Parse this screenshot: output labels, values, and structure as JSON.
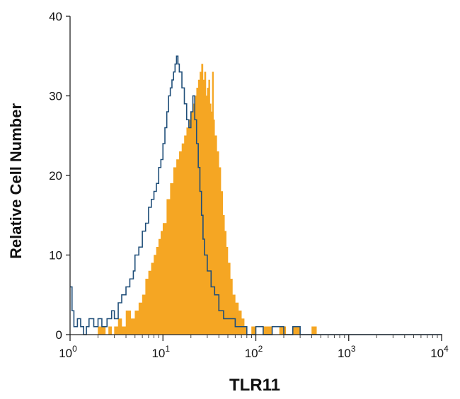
{
  "chart_data": {
    "type": "histogram",
    "title": "",
    "xlabel": "TLR11",
    "ylabel": "Relative Cell Number",
    "x_scale": "log",
    "xlim": [
      1,
      10000
    ],
    "ylim": [
      0,
      40
    ],
    "y_ticks": [
      0,
      10,
      20,
      30,
      40
    ],
    "x_ticks": [
      {
        "base": "10",
        "exp": "0",
        "value": 1
      },
      {
        "base": "10",
        "exp": "1",
        "value": 10
      },
      {
        "base": "10",
        "exp": "2",
        "value": 100
      },
      {
        "base": "10",
        "exp": "3",
        "value": 1000
      },
      {
        "base": "10",
        "exp": "4",
        "value": 10000
      }
    ],
    "grid": false,
    "legend": "none",
    "series": [
      {
        "style": "filled",
        "color": "#f5a623",
        "x": [
          1.0,
          2.0,
          2.4,
          2.6,
          2.8,
          3.0,
          3.3,
          3.6,
          4.0,
          4.5,
          5.0,
          5.5,
          6.0,
          6.5,
          7.0,
          7.5,
          8.0,
          8.5,
          9.0,
          9.5,
          10.0,
          11.0,
          12.0,
          13.0,
          14.0,
          15.0,
          16.0,
          17.0,
          18.0,
          19.0,
          20.0,
          21.0,
          22.0,
          23.0,
          24.0,
          25.0,
          26.0,
          27.0,
          28.0,
          29.0,
          30.0,
          31.0,
          32.0,
          33.0,
          34.0,
          35.0,
          36.0,
          38.0,
          40.0,
          42.0,
          44.0,
          46.0,
          48.0,
          50.0,
          53.0,
          56.0,
          60.0,
          65.0,
          70.0,
          75.0,
          80.0,
          90.0,
          100.0,
          120.0,
          150.0,
          180.0,
          210.0,
          250.0,
          300.0,
          400.0,
          450.0,
          10000.0
        ],
        "values": [
          0,
          1,
          0,
          1,
          0,
          1,
          2,
          1,
          3,
          2,
          3,
          4,
          5,
          7,
          8,
          9,
          10,
          11,
          12,
          13,
          14,
          17,
          19,
          21,
          22,
          23,
          24,
          25,
          26,
          27,
          28,
          29,
          30,
          31,
          32,
          33,
          34,
          32,
          33,
          30,
          31,
          32,
          29,
          28,
          33,
          27,
          25,
          23,
          21,
          18,
          15,
          13,
          11,
          9,
          7,
          5,
          4,
          3,
          2,
          1,
          0,
          1,
          0,
          1,
          0,
          1,
          0,
          1,
          0,
          1,
          0,
          0
        ]
      },
      {
        "style": "outline",
        "color": "#1f4e79",
        "x": [
          1.0,
          1.05,
          1.1,
          1.2,
          1.3,
          1.4,
          1.5,
          1.6,
          1.8,
          2.0,
          2.2,
          2.5,
          2.8,
          3.0,
          3.3,
          3.6,
          4.0,
          4.4,
          4.8,
          5.0,
          5.5,
          6.0,
          6.5,
          7.0,
          7.5,
          8.0,
          8.5,
          9.0,
          9.5,
          10.0,
          10.5,
          11.0,
          11.5,
          12.0,
          12.5,
          13.0,
          13.5,
          14.0,
          14.5,
          15.0,
          16.0,
          17.0,
          18.0,
          19.0,
          20.0,
          21.0,
          22.0,
          23.0,
          24.0,
          25.0,
          26.0,
          27.0,
          28.0,
          30.0,
          33.0,
          36.0,
          40.0,
          45.0,
          50.0,
          60.0,
          70.0,
          80.0,
          100.0,
          120.0,
          150.0,
          200.0,
          250.0,
          300.0,
          10000.0
        ],
        "values": [
          6,
          3,
          1,
          2,
          1,
          0,
          1,
          2,
          1,
          2,
          1,
          2,
          3,
          2,
          4,
          5,
          6,
          7,
          8,
          10,
          11,
          13,
          14,
          16,
          17,
          18,
          19,
          21,
          22,
          24,
          26,
          28,
          30,
          31,
          32,
          33,
          34,
          35,
          34,
          33,
          31,
          29,
          27,
          26,
          28,
          30,
          27,
          24,
          21,
          18,
          15,
          12,
          10,
          8,
          6,
          5,
          3,
          2,
          2,
          1,
          1,
          0,
          1,
          0,
          1,
          0,
          1,
          0,
          0
        ]
      }
    ]
  }
}
